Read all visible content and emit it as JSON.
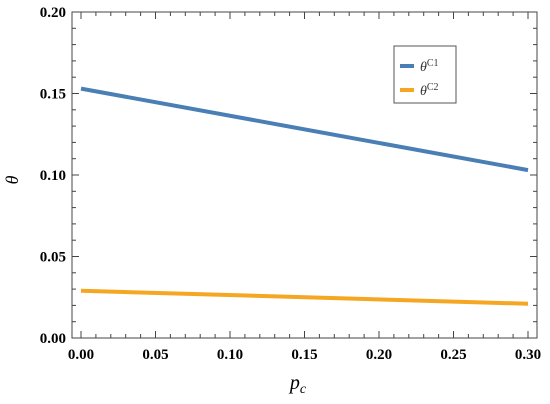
{
  "chart_data": {
    "type": "line",
    "title": "",
    "xlabel": "p",
    "xlabel_sub": "c",
    "ylabel": "θ",
    "xlim": [
      0.0,
      0.3
    ],
    "ylim": [
      0.0,
      0.2
    ],
    "x_ticks": [
      "0.00",
      "0.05",
      "0.10",
      "0.15",
      "0.20",
      "0.25",
      "0.30"
    ],
    "y_ticks": [
      "0.00",
      "0.05",
      "0.10",
      "0.15",
      "0.20"
    ],
    "grid": false,
    "legend_position": "top-right",
    "series": [
      {
        "name_base": "θ",
        "name_sup": "C1",
        "color": "#4a7fb5",
        "x": [
          0.0,
          0.3
        ],
        "y": [
          0.153,
          0.103
        ]
      },
      {
        "name_base": "θ",
        "name_sup": "C2",
        "color": "#f5a623",
        "x": [
          0.0,
          0.3
        ],
        "y": [
          0.029,
          0.021
        ]
      }
    ]
  }
}
